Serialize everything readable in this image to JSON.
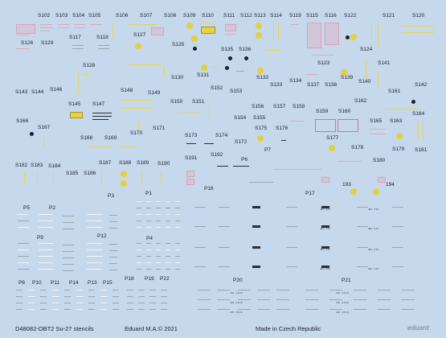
{
  "labels": [
    {
      "id": "S102",
      "text": "S102"
    },
    {
      "id": "S103",
      "text": "S103"
    },
    {
      "id": "S104",
      "text": "S104"
    },
    {
      "id": "S105",
      "text": "S105"
    },
    {
      "id": "S106",
      "text": "S106"
    },
    {
      "id": "S107",
      "text": "S107"
    },
    {
      "id": "S108",
      "text": "S108"
    },
    {
      "id": "S109",
      "text": "S109"
    },
    {
      "id": "S110",
      "text": "S110"
    },
    {
      "id": "S111",
      "text": "S111"
    },
    {
      "id": "S112",
      "text": "S112"
    },
    {
      "id": "S113",
      "text": "S113"
    },
    {
      "id": "S114",
      "text": "S114"
    },
    {
      "id": "S119",
      "text": "S119"
    },
    {
      "id": "S115",
      "text": "S115"
    },
    {
      "id": "S116",
      "text": "S116"
    },
    {
      "id": "S122",
      "text": "S122"
    },
    {
      "id": "S121",
      "text": "S121"
    },
    {
      "id": "S120",
      "text": "S120"
    },
    {
      "id": "S126",
      "text": "S126"
    },
    {
      "id": "S129",
      "text": "S129"
    },
    {
      "id": "S117",
      "text": "S117"
    },
    {
      "id": "S118",
      "text": "S118"
    },
    {
      "id": "S127",
      "text": "S127"
    },
    {
      "id": "S125",
      "text": "S125"
    },
    {
      "id": "S135",
      "text": "S135"
    },
    {
      "id": "S136",
      "text": "S136"
    },
    {
      "id": "S124",
      "text": "S124"
    },
    {
      "id": "S128",
      "text": "S128"
    },
    {
      "id": "S123",
      "text": "S123"
    },
    {
      "id": "S141",
      "text": "S141"
    },
    {
      "id": "S130",
      "text": "S130"
    },
    {
      "id": "S131",
      "text": "S131"
    },
    {
      "id": "S132",
      "text": "S132"
    },
    {
      "id": "S134",
      "text": "S134"
    },
    {
      "id": "S133",
      "text": "S133"
    },
    {
      "id": "S137",
      "text": "S137"
    },
    {
      "id": "S138",
      "text": "S138"
    },
    {
      "id": "S139",
      "text": "S139"
    },
    {
      "id": "S140",
      "text": "S140"
    },
    {
      "id": "S142",
      "text": "S142"
    },
    {
      "id": "S143",
      "text": "S143"
    },
    {
      "id": "S144",
      "text": "S144"
    },
    {
      "id": "S146",
      "text": "S146"
    },
    {
      "id": "S148",
      "text": "S148"
    },
    {
      "id": "S149",
      "text": "S149"
    },
    {
      "id": "S152",
      "text": "S152"
    },
    {
      "id": "S153",
      "text": "S153"
    },
    {
      "id": "S161",
      "text": "S161"
    },
    {
      "id": "S150",
      "text": "S150"
    },
    {
      "id": "S151",
      "text": "S151"
    },
    {
      "id": "S145",
      "text": "S145"
    },
    {
      "id": "S147",
      "text": "S147"
    },
    {
      "id": "S156",
      "text": "S156"
    },
    {
      "id": "S157",
      "text": "S157"
    },
    {
      "id": "S158",
      "text": "S158"
    },
    {
      "id": "S159",
      "text": "S159"
    },
    {
      "id": "S160",
      "text": "S160"
    },
    {
      "id": "S162",
      "text": "S162"
    },
    {
      "id": "S154",
      "text": "S154"
    },
    {
      "id": "S155",
      "text": "S155"
    },
    {
      "id": "S164",
      "text": "S164"
    },
    {
      "id": "S166",
      "text": "S166"
    },
    {
      "id": "S167",
      "text": "S167"
    },
    {
      "id": "S165",
      "text": "S165"
    },
    {
      "id": "S163",
      "text": "S163"
    },
    {
      "id": "S171",
      "text": "S171"
    },
    {
      "id": "S170",
      "text": "S170"
    },
    {
      "id": "S175",
      "text": "S175"
    },
    {
      "id": "S176",
      "text": "S176"
    },
    {
      "id": "S168",
      "text": "S168"
    },
    {
      "id": "S169",
      "text": "S169"
    },
    {
      "id": "S173",
      "text": "S173"
    },
    {
      "id": "S174",
      "text": "S174"
    },
    {
      "id": "S172",
      "text": "S172"
    },
    {
      "id": "S177",
      "text": "S177"
    },
    {
      "id": "S178",
      "text": "S178"
    },
    {
      "id": "S179",
      "text": "S179"
    },
    {
      "id": "S181",
      "text": "S181"
    },
    {
      "id": "P7",
      "text": "P7"
    },
    {
      "id": "S191",
      "text": "S191"
    },
    {
      "id": "S192",
      "text": "S192"
    },
    {
      "id": "P6",
      "text": "P6"
    },
    {
      "id": "S180",
      "text": "S180"
    },
    {
      "id": "S182",
      "text": "S182"
    },
    {
      "id": "S183",
      "text": "S183"
    },
    {
      "id": "S184",
      "text": "S184"
    },
    {
      "id": "S187",
      "text": "S187"
    },
    {
      "id": "S188",
      "text": "S188"
    },
    {
      "id": "S189",
      "text": "S189"
    },
    {
      "id": "S190",
      "text": "S190"
    },
    {
      "id": "S185",
      "text": "S185"
    },
    {
      "id": "S186",
      "text": "S186"
    },
    {
      "id": "P16",
      "text": "P16"
    },
    {
      "id": "L193",
      "text": "193"
    },
    {
      "id": "L194",
      "text": "194"
    },
    {
      "id": "P3",
      "text": "P3"
    },
    {
      "id": "P1",
      "text": "P1"
    },
    {
      "id": "P17",
      "text": "P17"
    },
    {
      "id": "P5",
      "text": "P5"
    },
    {
      "id": "P2",
      "text": "P2"
    },
    {
      "id": "P9",
      "text": "P9"
    },
    {
      "id": "P12",
      "text": "P12"
    },
    {
      "id": "P4",
      "text": "P4"
    },
    {
      "id": "P8",
      "text": "P8"
    },
    {
      "id": "P10",
      "text": "P10"
    },
    {
      "id": "P11",
      "text": "P11"
    },
    {
      "id": "P14",
      "text": "P14"
    },
    {
      "id": "P13",
      "text": "P13"
    },
    {
      "id": "P15",
      "text": "P15"
    },
    {
      "id": "P18",
      "text": "P18"
    },
    {
      "id": "P19",
      "text": "P19"
    },
    {
      "id": "P22",
      "text": "P22"
    },
    {
      "id": "P20",
      "text": "P20"
    },
    {
      "id": "P21",
      "text": "P21"
    }
  ],
  "footer": {
    "code": "D48082-OBT2 Su-27 stencils",
    "copyright": "Eduard M.A.© 2021",
    "origin": "Made in Czech Republic",
    "brand": "eduard"
  },
  "tiny_marks": {
    "p17_mark": "481 · 470",
    "p20_mark": "478 · 471 B"
  },
  "colors": {
    "background": "#c5d8ec",
    "stencil_yellow": "#e9d64f",
    "stencil_pink": "#e7a6bb",
    "stencil_dark": "#2a2d33"
  }
}
